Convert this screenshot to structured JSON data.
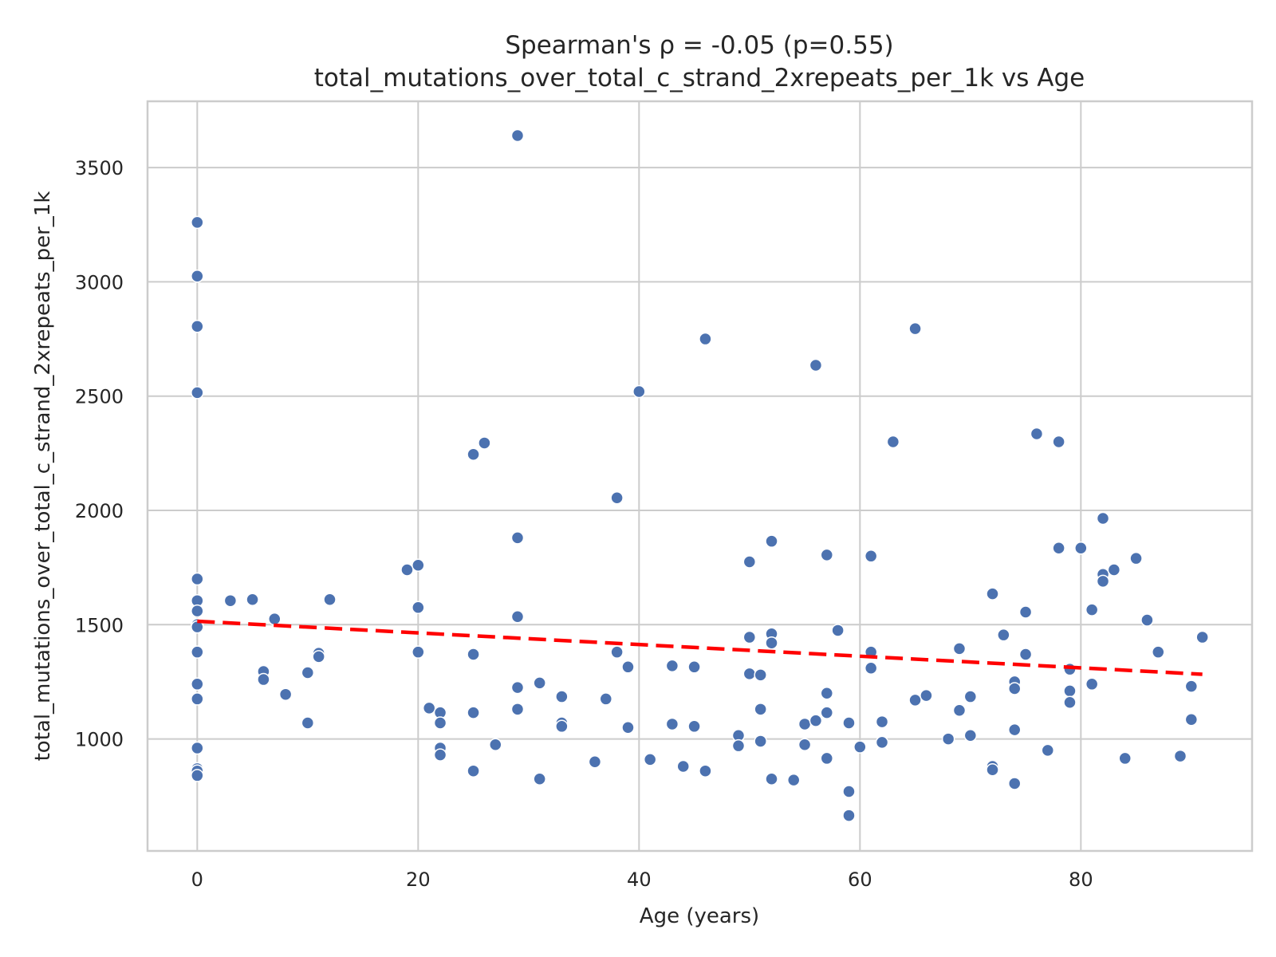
{
  "chart_data": {
    "type": "scatter",
    "title": "Spearman's ρ = -0.05 (p=0.55)",
    "subtitle": "total_mutations_over_total_c_strand_2xrepeats_per_1k vs Age",
    "xlabel": "Age (years)",
    "ylabel": "total_mutations_over_total_c_strand_2xrepeats_per_1k",
    "xlim": [
      -4.5,
      95.5
    ],
    "ylim": [
      510,
      3790
    ],
    "x_ticks": [
      0,
      20,
      40,
      60,
      80
    ],
    "y_ticks": [
      1000,
      1500,
      2000,
      2500,
      3000,
      3500
    ],
    "grid": true,
    "point_color": "#4c72b0",
    "trend_color": "#ff0000",
    "trend_style": "dashed",
    "trend_line": {
      "x": [
        0,
        91
      ],
      "y": [
        1515,
        1283
      ]
    },
    "points": [
      [
        0,
        3260
      ],
      [
        0,
        3025
      ],
      [
        0,
        2805
      ],
      [
        0,
        2515
      ],
      [
        0,
        1700
      ],
      [
        0,
        1605
      ],
      [
        0,
        1560
      ],
      [
        0,
        1500
      ],
      [
        0,
        1490
      ],
      [
        0,
        1380
      ],
      [
        0,
        1240
      ],
      [
        0,
        1175
      ],
      [
        0,
        960
      ],
      [
        0,
        870
      ],
      [
        0,
        860
      ],
      [
        0,
        840
      ],
      [
        3,
        1605
      ],
      [
        5,
        1610
      ],
      [
        6,
        1295
      ],
      [
        6,
        1260
      ],
      [
        7,
        1525
      ],
      [
        8,
        1195
      ],
      [
        10,
        1290
      ],
      [
        10,
        1070
      ],
      [
        11,
        1375
      ],
      [
        11,
        1360
      ],
      [
        12,
        1610
      ],
      [
        19,
        1740
      ],
      [
        20,
        1760
      ],
      [
        20,
        1575
      ],
      [
        20,
        1380
      ],
      [
        21,
        1135
      ],
      [
        22,
        1115
      ],
      [
        22,
        1070
      ],
      [
        22,
        960
      ],
      [
        22,
        930
      ],
      [
        25,
        2245
      ],
      [
        25,
        1370
      ],
      [
        25,
        1115
      ],
      [
        25,
        860
      ],
      [
        26,
        2295
      ],
      [
        27,
        975
      ],
      [
        29,
        3640
      ],
      [
        29,
        1880
      ],
      [
        29,
        1535
      ],
      [
        29,
        1225
      ],
      [
        29,
        1130
      ],
      [
        31,
        1245
      ],
      [
        31,
        825
      ],
      [
        33,
        1185
      ],
      [
        33,
        1070
      ],
      [
        33,
        1055
      ],
      [
        36,
        900
      ],
      [
        37,
        1175
      ],
      [
        38,
        2055
      ],
      [
        38,
        1380
      ],
      [
        39,
        1315
      ],
      [
        39,
        1050
      ],
      [
        40,
        2520
      ],
      [
        41,
        910
      ],
      [
        43,
        1320
      ],
      [
        43,
        1065
      ],
      [
        44,
        880
      ],
      [
        45,
        1315
      ],
      [
        45,
        1055
      ],
      [
        46,
        2750
      ],
      [
        46,
        860
      ],
      [
        49,
        1015
      ],
      [
        49,
        970
      ],
      [
        50,
        1775
      ],
      [
        50,
        1445
      ],
      [
        50,
        1285
      ],
      [
        51,
        1280
      ],
      [
        51,
        1130
      ],
      [
        51,
        990
      ],
      [
        52,
        1865
      ],
      [
        52,
        1460
      ],
      [
        52,
        1420
      ],
      [
        52,
        825
      ],
      [
        54,
        820
      ],
      [
        55,
        1065
      ],
      [
        55,
        975
      ],
      [
        56,
        2635
      ],
      [
        56,
        1080
      ],
      [
        57,
        1805
      ],
      [
        57,
        1200
      ],
      [
        57,
        1115
      ],
      [
        57,
        915
      ],
      [
        58,
        1475
      ],
      [
        59,
        1070
      ],
      [
        59,
        770
      ],
      [
        59,
        665
      ],
      [
        60,
        965
      ],
      [
        61,
        1800
      ],
      [
        61,
        1380
      ],
      [
        61,
        1310
      ],
      [
        62,
        1075
      ],
      [
        62,
        985
      ],
      [
        63,
        2300
      ],
      [
        65,
        2795
      ],
      [
        65,
        1170
      ],
      [
        66,
        1190
      ],
      [
        68,
        1000
      ],
      [
        69,
        1395
      ],
      [
        69,
        1125
      ],
      [
        70,
        1185
      ],
      [
        70,
        1015
      ],
      [
        72,
        1635
      ],
      [
        72,
        880
      ],
      [
        72,
        865
      ],
      [
        73,
        1455
      ],
      [
        74,
        1250
      ],
      [
        74,
        1220
      ],
      [
        74,
        1040
      ],
      [
        74,
        805
      ],
      [
        75,
        1555
      ],
      [
        75,
        1370
      ],
      [
        76,
        2335
      ],
      [
        77,
        950
      ],
      [
        78,
        2300
      ],
      [
        78,
        1835
      ],
      [
        79,
        1305
      ],
      [
        79,
        1210
      ],
      [
        79,
        1160
      ],
      [
        80,
        1835
      ],
      [
        81,
        1565
      ],
      [
        81,
        1240
      ],
      [
        82,
        1965
      ],
      [
        82,
        1720
      ],
      [
        82,
        1690
      ],
      [
        83,
        1740
      ],
      [
        84,
        915
      ],
      [
        85,
        1790
      ],
      [
        86,
        1520
      ],
      [
        87,
        1380
      ],
      [
        89,
        925
      ],
      [
        90,
        1230
      ],
      [
        90,
        1085
      ],
      [
        91,
        1445
      ]
    ]
  }
}
